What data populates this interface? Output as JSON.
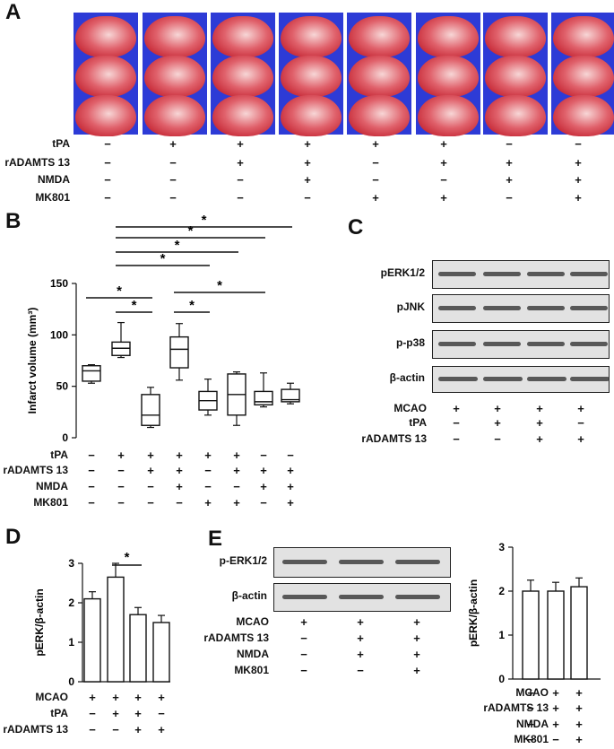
{
  "panels": {
    "A": "A",
    "B": "B",
    "C": "C",
    "D": "D",
    "E": "E"
  },
  "panelA": {
    "row_labels": [
      "tPA",
      "rADAMTS 13",
      "NMDA",
      "MK801"
    ],
    "conditions": [
      [
        "−",
        "−",
        "−",
        "−"
      ],
      [
        "+",
        "−",
        "−",
        "−"
      ],
      [
        "+",
        "+",
        "−",
        "−"
      ],
      [
        "+",
        "+",
        "+",
        "−"
      ],
      [
        "+",
        "−",
        "−",
        "+"
      ],
      [
        "+",
        "+",
        "−",
        "+"
      ],
      [
        "−",
        "+",
        "+",
        "−"
      ],
      [
        "−",
        "+",
        "+",
        "+"
      ]
    ]
  },
  "panelB": {
    "row_labels": [
      "tPA",
      "rADAMTS 13",
      "NMDA",
      "MK801"
    ],
    "conditions": [
      [
        "−",
        "−",
        "−",
        "−"
      ],
      [
        "+",
        "−",
        "−",
        "−"
      ],
      [
        "+",
        "+",
        "−",
        "−"
      ],
      [
        "+",
        "+",
        "+",
        "−"
      ],
      [
        "+",
        "−",
        "−",
        "+"
      ],
      [
        "+",
        "+",
        "−",
        "+"
      ],
      [
        "−",
        "+",
        "+",
        "−"
      ],
      [
        "−",
        "+",
        "+",
        "+"
      ]
    ]
  },
  "panelC": {
    "blot_labels": [
      "pERK1/2",
      "pJNK",
      "p-p38",
      "β-actin"
    ],
    "row_labels": [
      "MCAO",
      "tPA",
      "rADAMTS 13"
    ],
    "conditions": [
      [
        "+",
        "−",
        "−"
      ],
      [
        "+",
        "+",
        "−"
      ],
      [
        "+",
        "+",
        "+"
      ],
      [
        "+",
        "−",
        "+"
      ]
    ]
  },
  "panelD": {
    "row_labels": [
      "MCAO",
      "tPA",
      "rADAMTS 13"
    ],
    "conditions": [
      [
        "+",
        "−",
        "−"
      ],
      [
        "+",
        "+",
        "−"
      ],
      [
        "+",
        "+",
        "+"
      ],
      [
        "+",
        "−",
        "+"
      ]
    ]
  },
  "panelE": {
    "blot_labels": [
      "p-ERK1/2",
      "β-actin"
    ],
    "row_labels": [
      "MCAO",
      "rADAMTS 13",
      "NMDA",
      "MK801"
    ],
    "conditions": [
      [
        "+",
        "−",
        "−",
        "−"
      ],
      [
        "+",
        "+",
        "+",
        "−"
      ],
      [
        "+",
        "+",
        "+",
        "+"
      ]
    ],
    "chart_row_labels": [
      "MCAO",
      "rADAMTS 13",
      "NMDA",
      "MK801"
    ],
    "chart_conditions": [
      [
        "+",
        "−",
        "−",
        "−"
      ],
      [
        "+",
        "+",
        "+",
        "−"
      ],
      [
        "+",
        "+",
        "+",
        "+"
      ]
    ]
  },
  "chart_data": [
    {
      "panel": "B",
      "type": "box",
      "ylabel": "Infarct volume (mm³)",
      "ylim": [
        0,
        150
      ],
      "yticks": [
        0,
        50,
        100,
        150
      ],
      "groups": [
        {
          "whisker_low": 53,
          "q1": 55,
          "median": 65,
          "q3": 70,
          "whisker_high": 71
        },
        {
          "whisker_low": 78,
          "q1": 80,
          "median": 87,
          "q3": 93,
          "whisker_high": 112
        },
        {
          "whisker_low": 10,
          "q1": 12,
          "median": 22,
          "q3": 42,
          "whisker_high": 49
        },
        {
          "whisker_low": 56,
          "q1": 68,
          "median": 86,
          "q3": 98,
          "whisker_high": 111
        },
        {
          "whisker_low": 22,
          "q1": 27,
          "median": 36,
          "q3": 45,
          "whisker_high": 57
        },
        {
          "whisker_low": 12,
          "q1": 22,
          "median": 42,
          "q3": 62,
          "whisker_high": 64
        },
        {
          "whisker_low": 30,
          "q1": 32,
          "median": 35,
          "q3": 45,
          "whisker_high": 63
        },
        {
          "whisker_low": 33,
          "q1": 35,
          "median": 37,
          "q3": 47,
          "whisker_high": 53
        }
      ],
      "significance": [
        {
          "from": 1,
          "to": 3,
          "label": "*"
        },
        {
          "from": 2,
          "to": 3,
          "label": "*"
        },
        {
          "from": 2,
          "to": 5,
          "label": "*"
        },
        {
          "from": 2,
          "to": 6,
          "label": "*"
        },
        {
          "from": 2,
          "to": 7,
          "label": "*"
        },
        {
          "from": 2,
          "to": 8,
          "label": "*"
        },
        {
          "from": 4,
          "to": 5,
          "label": "*"
        },
        {
          "from": 4,
          "to": 7,
          "label": "*"
        }
      ]
    },
    {
      "panel": "D",
      "type": "bar",
      "ylabel": "pERK/β-actin",
      "ylim": [
        0,
        3
      ],
      "yticks": [
        0,
        1,
        2,
        3
      ],
      "values": [
        2.1,
        2.65,
        1.7,
        1.5
      ],
      "errors": [
        0.18,
        0.35,
        0.18,
        0.18
      ],
      "significance": [
        {
          "from": 2,
          "to": 3,
          "label": "*"
        }
      ]
    },
    {
      "panel": "E",
      "type": "bar",
      "ylabel": "pERK/β-actin",
      "ylim": [
        0,
        3
      ],
      "yticks": [
        0,
        1,
        2,
        3
      ],
      "values": [
        2.0,
        2.0,
        2.1
      ],
      "errors": [
        0.25,
        0.2,
        0.2
      ]
    }
  ]
}
